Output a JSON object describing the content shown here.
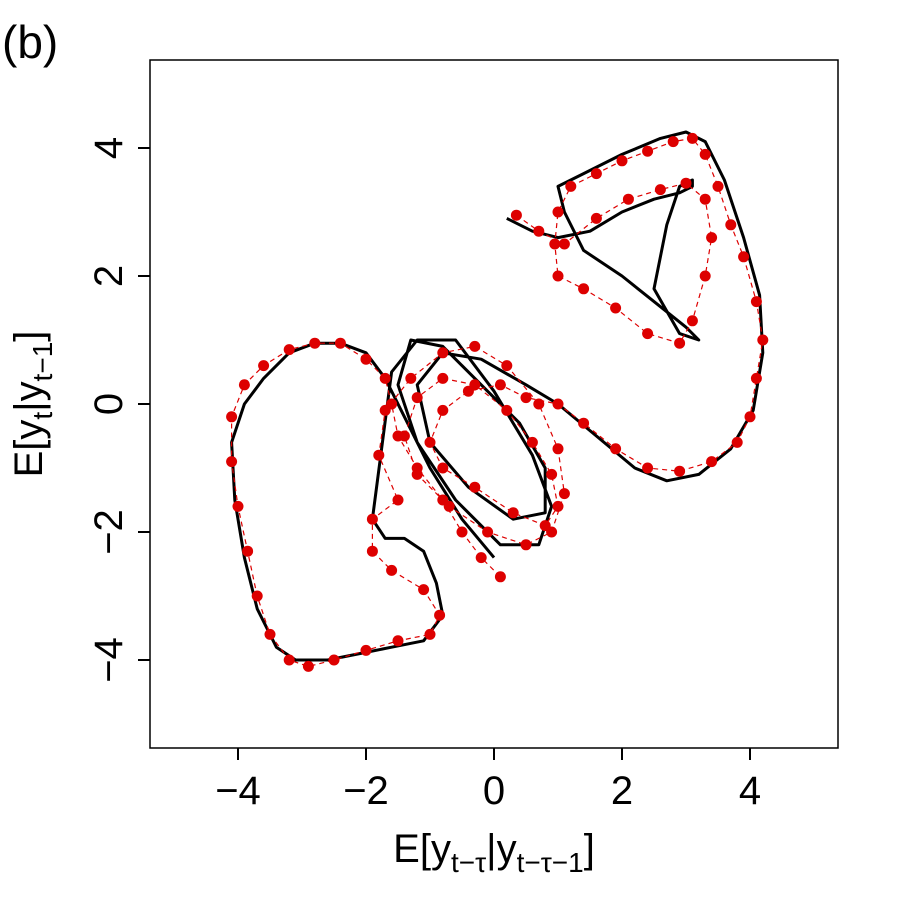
{
  "chart_data": {
    "type": "scatter",
    "panel_label": "(b)",
    "xlabel": [
      "E[y",
      "t−τ",
      "|y",
      "t−τ−1",
      "]"
    ],
    "ylabel": [
      "E[y",
      "t",
      "|y",
      "t−1",
      "]"
    ],
    "xlim": [
      -5.375,
      5.375
    ],
    "ylim": [
      -5.375,
      5.375
    ],
    "xticks": [
      {
        "value": -4,
        "label": "−4"
      },
      {
        "value": -2,
        "label": "−2"
      },
      0,
      2,
      4
    ],
    "yticks": [
      {
        "value": -4,
        "label": "−4"
      },
      {
        "value": -2,
        "label": "−2"
      },
      0,
      2,
      4
    ],
    "series": [
      {
        "color": "#000000",
        "style": "line",
        "x": [
          0.2,
          0.6,
          1.0,
          1.5,
          2.0,
          2.5,
          2.9,
          3.1,
          3.1,
          2.9,
          2.7,
          2.5,
          2.9,
          3.2,
          3.0,
          2.5,
          2.0,
          1.4,
          1.1,
          1.0,
          1.4,
          2.0,
          2.6,
          3.0,
          3.3,
          3.6,
          3.9,
          4.15,
          4.2,
          4.05,
          3.7,
          3.2,
          2.7,
          2.2,
          1.6,
          1.0,
          0.5,
          -0.2,
          -0.8,
          -1.2,
          -1.0,
          -0.4,
          0.3,
          0.8,
          0.8,
          0.4,
          -0.2,
          -0.8,
          -1.3,
          -1.5,
          -1.2,
          -0.6,
          0.1,
          0.7,
          0.9,
          0.6,
          0.0,
          -0.6,
          -1.2,
          -1.6,
          -1.9,
          -1.7,
          -1.4,
          -1.1,
          -0.9,
          -0.8,
          -1.1,
          -1.6,
          -2.1,
          -2.6,
          -3.1,
          -3.4,
          -3.7,
          -3.9,
          -4.05,
          -4.1,
          -3.9,
          -3.6,
          -3.2,
          -2.8,
          -2.4,
          -2.0,
          -1.7,
          -1.4,
          -1.0,
          -0.5,
          0.0
        ],
        "values": [
          2.9,
          2.7,
          2.6,
          2.7,
          3.0,
          3.2,
          3.3,
          3.4,
          3.5,
          3.4,
          2.8,
          1.8,
          1.1,
          1.0,
          1.2,
          1.6,
          2.0,
          2.4,
          3.0,
          3.4,
          3.6,
          3.9,
          4.15,
          4.25,
          4.1,
          3.5,
          2.6,
          1.7,
          0.8,
          -0.1,
          -0.7,
          -1.1,
          -1.2,
          -1.0,
          -0.5,
          0.0,
          0.3,
          0.7,
          0.8,
          0.3,
          -0.6,
          -1.3,
          -1.8,
          -1.7,
          -1.0,
          -0.3,
          0.3,
          0.9,
          1.0,
          0.3,
          -0.6,
          -1.5,
          -2.2,
          -2.2,
          -1.6,
          -0.8,
          0.2,
          1.0,
          1.0,
          0.5,
          -1.8,
          -2.1,
          -2.1,
          -2.3,
          -2.8,
          -3.3,
          -3.7,
          -3.8,
          -3.9,
          -4.0,
          -4.0,
          -3.8,
          -3.2,
          -2.4,
          -1.5,
          -0.6,
          0.0,
          0.4,
          0.8,
          0.95,
          0.95,
          0.8,
          0.4,
          -0.2,
          -1.0,
          -1.8,
          -2.4
        ]
      },
      {
        "color": "#dd0000",
        "style": "dashed-points",
        "x": [
          0.35,
          0.7,
          1.1,
          1.6,
          2.1,
          2.6,
          3.0,
          3.3,
          3.4,
          3.3,
          3.1,
          2.9,
          2.4,
          1.9,
          1.4,
          1.0,
          0.95,
          1.0,
          1.2,
          1.6,
          2.0,
          2.4,
          2.8,
          3.1,
          3.3,
          3.5,
          3.7,
          3.9,
          4.1,
          4.2,
          4.1,
          4.0,
          3.8,
          3.4,
          2.9,
          2.4,
          1.9,
          1.4,
          1.0,
          0.5,
          0.1,
          -0.4,
          -0.8,
          -1.0,
          -0.8,
          -0.3,
          0.3,
          0.8,
          1.0,
          0.9,
          0.6,
          0.2,
          -0.3,
          -0.8,
          -1.2,
          -1.4,
          -1.2,
          -0.7,
          -0.1,
          0.5,
          0.9,
          1.1,
          1.0,
          0.7,
          0.2,
          -0.3,
          -0.8,
          -1.3,
          -1.7,
          -1.8,
          -1.5,
          -1.9,
          -1.9,
          -1.6,
          -1.1,
          -0.85,
          -1.0,
          -1.5,
          -2.0,
          -2.5,
          -2.9,
          -3.2,
          -3.5,
          -3.7,
          -3.85,
          -4.0,
          -4.1,
          -4.1,
          -3.9,
          -3.6,
          -3.2,
          -2.8,
          -2.4,
          -2.0,
          -1.7,
          -1.6,
          -1.5,
          -1.2,
          -0.8,
          -0.5,
          -0.2,
          0.1
        ],
        "values": [
          2.95,
          2.7,
          2.5,
          2.9,
          3.2,
          3.35,
          3.45,
          3.2,
          2.6,
          2.0,
          1.3,
          0.95,
          1.1,
          1.5,
          1.8,
          2.0,
          2.5,
          3.0,
          3.4,
          3.6,
          3.8,
          3.95,
          4.1,
          4.15,
          3.9,
          3.4,
          2.8,
          2.3,
          1.6,
          1.0,
          0.4,
          -0.2,
          -0.6,
          -0.9,
          -1.05,
          -1.0,
          -0.7,
          -0.3,
          0.0,
          0.1,
          0.3,
          0.2,
          -0.1,
          -0.6,
          -1.0,
          -1.3,
          -1.7,
          -1.9,
          -1.6,
          -1.1,
          -0.6,
          -0.1,
          0.3,
          0.4,
          0.1,
          -0.5,
          -1.1,
          -1.6,
          -2.0,
          -2.2,
          -2.0,
          -1.4,
          -0.7,
          0.0,
          0.6,
          0.9,
          0.8,
          0.4,
          -0.1,
          -0.8,
          -1.5,
          -1.8,
          -2.3,
          -2.6,
          -2.9,
          -3.3,
          -3.6,
          -3.7,
          -3.85,
          -4.0,
          -4.1,
          -4.0,
          -3.6,
          -3.0,
          -2.3,
          -1.6,
          -0.9,
          -0.2,
          0.3,
          0.6,
          0.85,
          0.95,
          0.95,
          0.7,
          0.4,
          0.0,
          -0.5,
          -1.0,
          -1.5,
          -2.0,
          -2.4,
          -2.7
        ]
      }
    ]
  }
}
